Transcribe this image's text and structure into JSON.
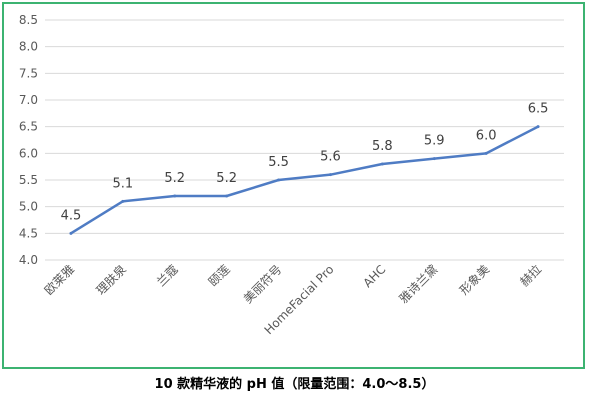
{
  "caption": "10 款精华液的 pH 值（限量范围：4.0～8.5）",
  "colors": {
    "line": "#4f7cc4",
    "grid": "#d9d9d9",
    "frame": "#3cb371"
  },
  "chart_data": {
    "type": "line",
    "categories": [
      "欧莱雅",
      "理肤泉",
      "兰蔻",
      "颐莲",
      "美丽符号",
      "HomeFacial Pro",
      "AHC",
      "雅诗兰黛",
      "形象美",
      "赫拉"
    ],
    "values": [
      4.5,
      5.1,
      5.2,
      5.2,
      5.5,
      5.6,
      5.8,
      5.9,
      6.0,
      6.5
    ],
    "data_labels": [
      "4.5",
      "5.1",
      "5.2",
      "5.2",
      "5.5",
      "5.6",
      "5.8",
      "5.9",
      "6.0",
      "6.5"
    ],
    "y_ticks": [
      "4.0",
      "4.5",
      "5.0",
      "5.5",
      "6.0",
      "6.5",
      "7.0",
      "7.5",
      "8.0",
      "8.5"
    ],
    "ylim": [
      4.0,
      8.5
    ],
    "grid": "horizontal",
    "legend": "none"
  }
}
